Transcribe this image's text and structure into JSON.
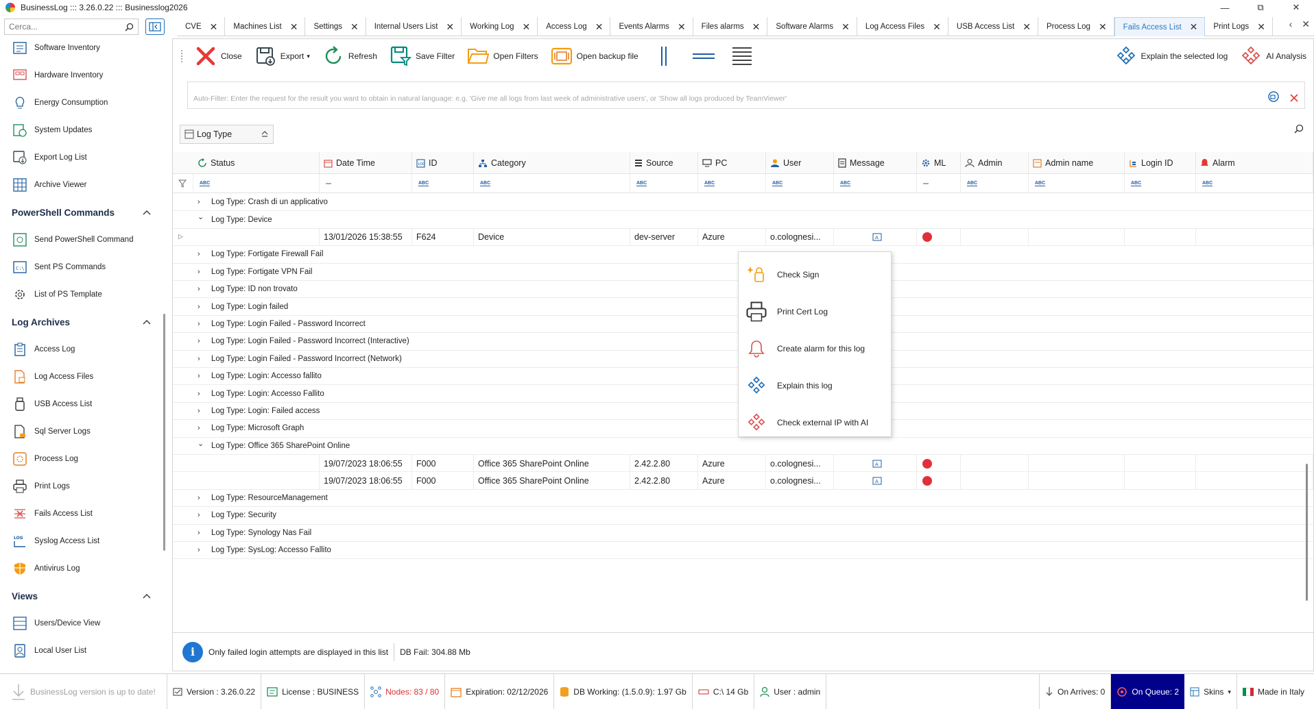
{
  "window": {
    "title": "BusinessLog ::: 3.26.0.22 ::: Businesslog2026",
    "minimize": "—",
    "maximize": "⧉",
    "close": "✕"
  },
  "sidebar": {
    "search_placeholder": "Cerca...",
    "items_top": [
      {
        "label": "Software Inventory",
        "icon": "software-inventory-icon"
      },
      {
        "label": "Hardware Inventory",
        "icon": "hardware-inventory-icon"
      },
      {
        "label": "Energy Consumption",
        "icon": "lightbulb-icon"
      },
      {
        "label": "System Updates",
        "icon": "system-updates-icon"
      },
      {
        "label": "Export Log List",
        "icon": "export-icon"
      },
      {
        "label": "Archive Viewer",
        "icon": "grid-icon"
      }
    ],
    "section_powershell": "PowerShell Commands",
    "items_powershell": [
      {
        "label": "Send PowerShell Command",
        "icon": "powershell-send-icon"
      },
      {
        "label": "Sent PS Commands",
        "icon": "terminal-icon"
      },
      {
        "label": "List of PS Template",
        "icon": "gear-list-icon"
      }
    ],
    "section_archives": "Log Archives",
    "items_archives": [
      {
        "label": "Access Log",
        "icon": "clipboard-icon"
      },
      {
        "label": "Log Access Files",
        "icon": "file-lock-icon"
      },
      {
        "label": "USB Access List",
        "icon": "usb-icon"
      },
      {
        "label": "Sql Server Logs",
        "icon": "sql-server-icon"
      },
      {
        "label": "Process Log",
        "icon": "process-icon"
      },
      {
        "label": "Print Logs",
        "icon": "printer-icon"
      },
      {
        "label": "Fails Access List",
        "icon": "fails-access-icon"
      },
      {
        "label": "Syslog Access List",
        "icon": "syslog-icon"
      },
      {
        "label": "Antivirus Log",
        "icon": "shield-icon"
      }
    ],
    "section_views": "Views",
    "items_views": [
      {
        "label": "Users/Device View",
        "icon": "users-device-icon"
      },
      {
        "label": "Local User List",
        "icon": "local-user-icon"
      }
    ]
  },
  "tabs": [
    {
      "label": "CVE",
      "active": false
    },
    {
      "label": "Machines List",
      "active": false
    },
    {
      "label": "Settings",
      "active": false
    },
    {
      "label": "Internal Users List",
      "active": false
    },
    {
      "label": "Working Log",
      "active": false
    },
    {
      "label": "Access Log",
      "active": false
    },
    {
      "label": "Events Alarms",
      "active": false
    },
    {
      "label": "Files alarms",
      "active": false
    },
    {
      "label": "Software Alarms",
      "active": false
    },
    {
      "label": "Log Access Files",
      "active": false
    },
    {
      "label": "USB Access List",
      "active": false
    },
    {
      "label": "Process Log",
      "active": false
    },
    {
      "label": "Fails Access List",
      "active": true
    },
    {
      "label": "Print Logs",
      "active": false
    }
  ],
  "toolbar": {
    "close": "Close",
    "export": "Export",
    "refresh": "Refresh",
    "save_filter": "Save Filter",
    "open_filters": "Open Filters",
    "open_backup": "Open backup file",
    "explain_selected": "Explain the selected log",
    "ai_analysis": "AI Analysis"
  },
  "autofilter": {
    "placeholder": "Auto-Filter: Enter the request for the result you want to obtain in natural language: e.g. 'Give me all logs from last week of administrative users', or 'Show all logs produced by TeamViewer'"
  },
  "group_chip": "Log Type",
  "columns": [
    "Status",
    "Date Time",
    "ID",
    "Category",
    "Source",
    "PC",
    "User",
    "Message",
    "ML",
    "Admin",
    "Admin name",
    "Login ID",
    "Alarm"
  ],
  "group_prefix": "Log Type: ",
  "groups": [
    {
      "name": "Crash di un applicativo",
      "expanded": false
    },
    {
      "name": "Device",
      "expanded": true,
      "rows": [
        {
          "datetime": "13/01/2026 15:38:55",
          "id": "F624",
          "category": "Device",
          "source": "dev-server",
          "pc": "Azure",
          "user": "o.colognesi..."
        }
      ]
    },
    {
      "name": "Fortigate Firewall Fail",
      "expanded": false
    },
    {
      "name": "Fortigate VPN Fail",
      "expanded": false
    },
    {
      "name": "ID non trovato",
      "expanded": false
    },
    {
      "name": "Login failed",
      "expanded": false
    },
    {
      "name": "Login Failed - Password Incorrect",
      "expanded": false
    },
    {
      "name": "Login Failed - Password Incorrect (Interactive)",
      "expanded": false
    },
    {
      "name": "Login Failed - Password Incorrect (Network)",
      "expanded": false
    },
    {
      "name": "Login: Accesso fallito",
      "expanded": false
    },
    {
      "name": "Login: Accesso Fallito",
      "expanded": false
    },
    {
      "name": "Login: Failed access",
      "expanded": false
    },
    {
      "name": "Microsoft Graph",
      "expanded": false
    },
    {
      "name": "Office 365 SharePoint Online",
      "expanded": true,
      "rows": [
        {
          "datetime": "19/07/2023 18:06:55",
          "id": "F000",
          "category": "Office 365 SharePoint Online",
          "source": "2.42.2.80",
          "pc": "Azure",
          "user": "o.colognesi..."
        },
        {
          "datetime": "19/07/2023 18:06:55",
          "id": "F000",
          "category": "Office 365 SharePoint Online",
          "source": "2.42.2.80",
          "pc": "Azure",
          "user": "o.colognesi..."
        }
      ]
    },
    {
      "name": "ResourceManagement",
      "expanded": false
    },
    {
      "name": "Security",
      "expanded": false
    },
    {
      "name": "Synology Nas Fail",
      "expanded": false
    },
    {
      "name": "SysLog: Accesso Fallito",
      "expanded": false
    }
  ],
  "context_menu": [
    {
      "label": "Check Sign",
      "icon": "check-sign-icon"
    },
    {
      "label": "Print Cert Log",
      "icon": "printer-icon"
    },
    {
      "label": "Create alarm for this log",
      "icon": "bell-icon"
    },
    {
      "label": "Explain this log",
      "icon": "ai-diamond-blue-icon"
    },
    {
      "label": "Check external IP with AI",
      "icon": "ai-diamond-red-icon"
    }
  ],
  "footer": {
    "info_text": "Only failed login attempts are displayed in this list",
    "db_fail": "DB Fail: 304.88 Mb"
  },
  "statusbar": {
    "update": "BusinessLog version is up to date!",
    "version": "Version : 3.26.0.22",
    "license": "License : BUSINESS",
    "nodes": "Nodes: 83 / 80",
    "expiration": "Expiration: 02/12/2026",
    "db_working": "DB Working: (1.5.0.9): 1.97 Gb",
    "disk": "C:\\ 14 Gb",
    "user": "User : admin",
    "on_arrives": "On Arrives: 0",
    "on_queue": "On Queue: 2",
    "skins": "Skins",
    "made_in": "Made in Italy"
  }
}
